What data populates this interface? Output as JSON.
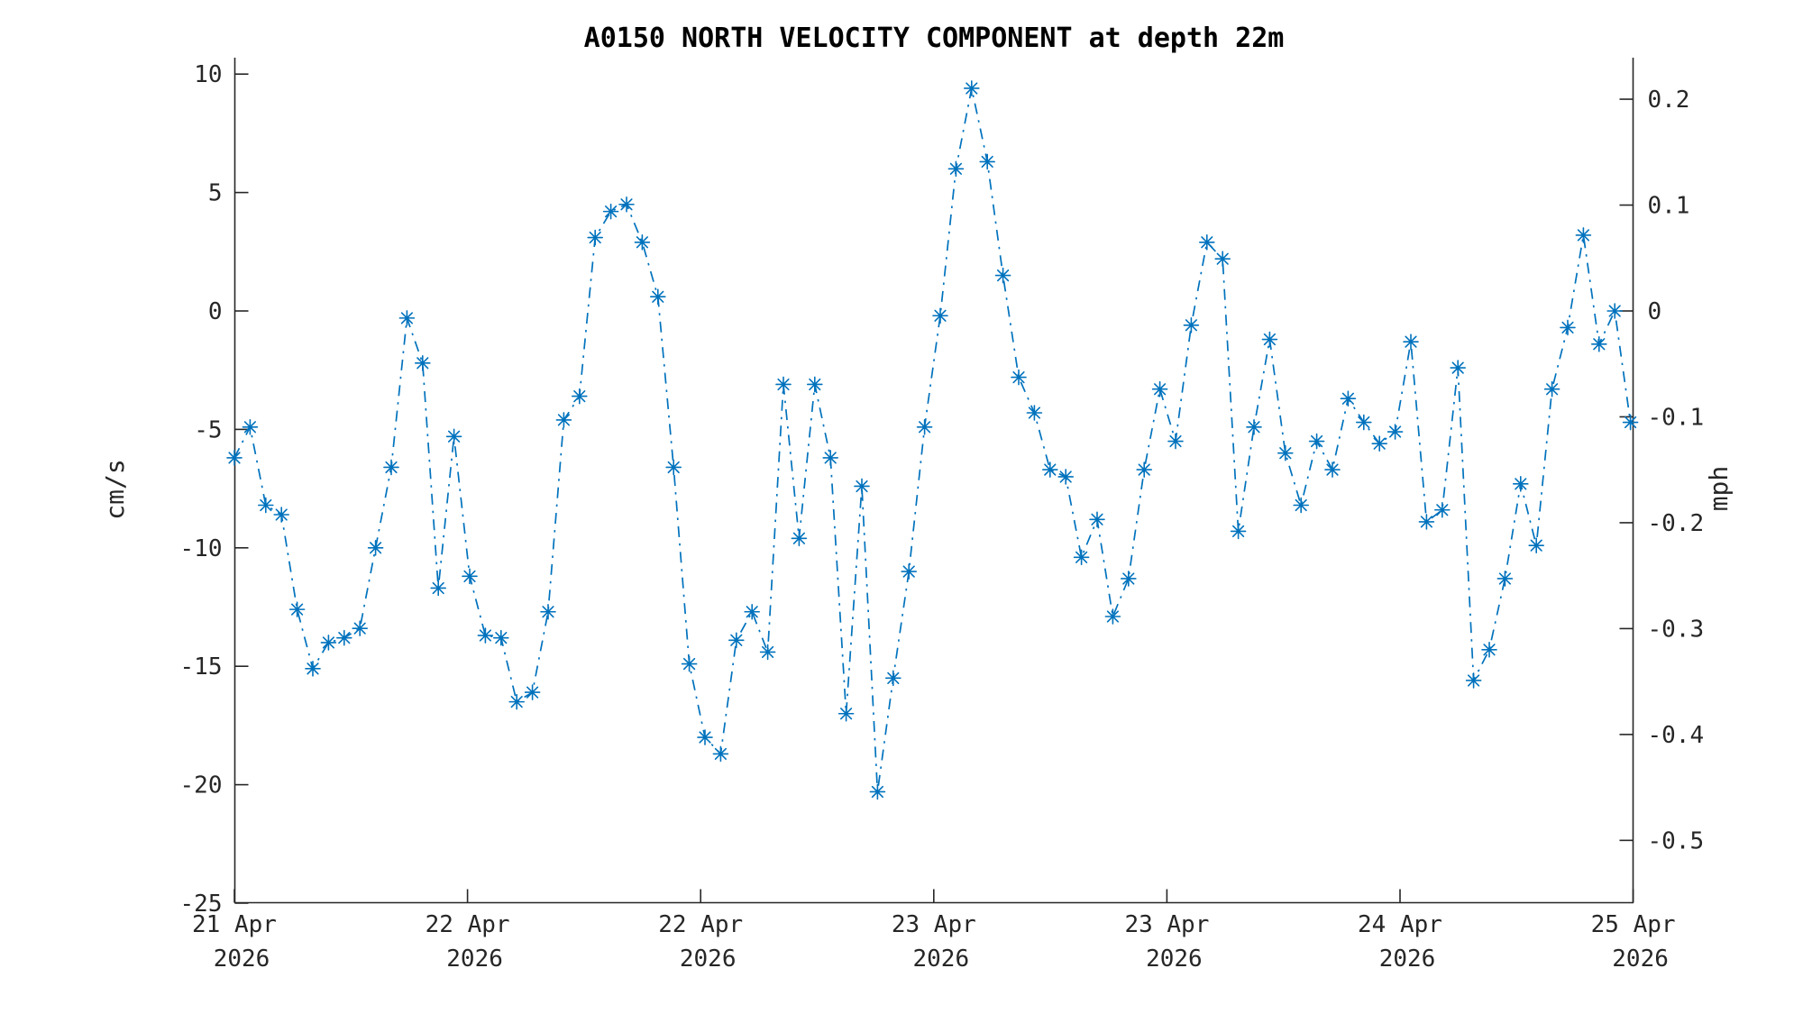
{
  "title": "A0150 NORTH VELOCITY COMPONENT at depth 22m",
  "colors": {
    "series_blue": "#0072BD",
    "axis_color": "#262626",
    "title_color": "#000000",
    "background": "#ffffff"
  },
  "chart_data": {
    "type": "line",
    "title": "A0150 NORTH VELOCITY COMPONENT at depth 22m",
    "grid": false,
    "legend": "none",
    "line_style": "dash-dot",
    "marker": "asterisk",
    "left_axis": {
      "label": "cm/s",
      "tick_labels": [
        "10",
        "5",
        "0",
        "-5",
        "-10",
        "-15",
        "-20",
        "-25"
      ],
      "tick_values": [
        10,
        5,
        0,
        -5,
        -10,
        -15,
        -20,
        -25
      ],
      "range": [
        -25,
        10.7
      ]
    },
    "right_axis": {
      "label": "mph",
      "tick_labels": [
        "0.2",
        "0.1",
        "0",
        "-0.1",
        "-0.2",
        "-0.3",
        "-0.4",
        "-0.5"
      ],
      "tick_values": [
        0.2,
        0.1,
        0,
        -0.1,
        -0.2,
        -0.3,
        -0.4,
        -0.5
      ]
    },
    "x_axis": {
      "tick_labels": [
        [
          "21 Apr",
          "2026"
        ],
        [
          "22 Apr",
          "2026"
        ],
        [
          "22 Apr",
          "2026"
        ],
        [
          "23 Apr",
          "2026"
        ],
        [
          "23 Apr",
          "2026"
        ],
        [
          "24 Apr",
          "2026"
        ],
        [
          "25 Apr",
          "2026"
        ]
      ]
    },
    "series": [
      {
        "name": "north-velocity-cm-per-s",
        "values": [
          -6.2,
          -4.9,
          -8.2,
          -8.6,
          -12.6,
          -15.1,
          -14.0,
          -13.8,
          -13.4,
          -10.0,
          -6.6,
          -0.3,
          -2.2,
          -11.7,
          -5.3,
          -11.2,
          -13.7,
          -13.8,
          -16.5,
          -16.1,
          -12.7,
          -4.6,
          -3.6,
          3.1,
          4.2,
          4.5,
          2.9,
          0.6,
          -6.6,
          -14.9,
          -18.0,
          -18.7,
          -13.9,
          -12.7,
          -14.4,
          -3.1,
          -9.6,
          -3.1,
          -6.2,
          -17.0,
          -7.4,
          -20.3,
          -15.5,
          -11.0,
          -4.9,
          -0.2,
          6.0,
          9.4,
          6.3,
          1.5,
          -2.8,
          -4.3,
          -6.7,
          -7.0,
          -10.4,
          -8.8,
          -12.9,
          -11.3,
          -6.7,
          -3.3,
          -5.5,
          -0.6,
          2.9,
          2.2,
          -9.3,
          -4.9,
          -1.2,
          -6.0,
          -8.2,
          -5.5,
          -6.7,
          -3.7,
          -4.7,
          -5.6,
          -5.1,
          -1.3,
          -8.9,
          -8.4,
          -2.4,
          -15.6,
          -14.3,
          -11.3,
          -7.3,
          -9.9,
          -3.3,
          -0.7,
          3.2,
          -1.4,
          0.0,
          -4.7
        ]
      }
    ]
  }
}
